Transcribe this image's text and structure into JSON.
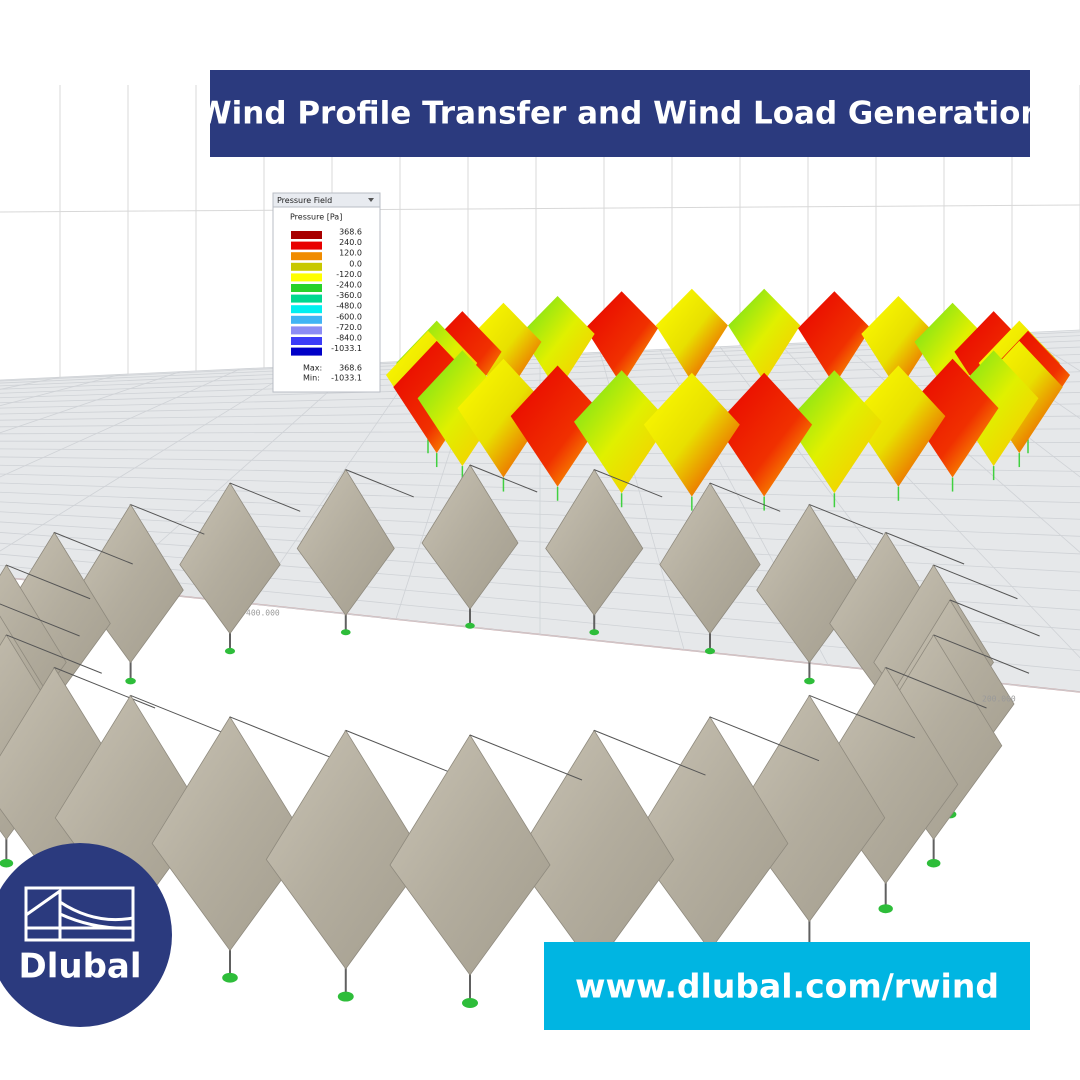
{
  "header": {
    "title": "Wind Profile Transfer and Wind Load Generation"
  },
  "legend": {
    "title": "Pressure Field",
    "quantity": "Pressure [Pa]",
    "entries": [
      {
        "label": "368.6",
        "color": "#a80000"
      },
      {
        "label": "240.0",
        "color": "#e80000"
      },
      {
        "label": "120.0",
        "color": "#f08c00"
      },
      {
        "label": "0.0",
        "color": "#c8c800"
      },
      {
        "label": "-120.0",
        "color": "#ffff00"
      },
      {
        "label": "-240.0",
        "color": "#28d22a"
      },
      {
        "label": "-360.0",
        "color": "#00d890"
      },
      {
        "label": "-480.0",
        "color": "#00f0f0"
      },
      {
        "label": "-600.0",
        "color": "#40b4f4"
      },
      {
        "label": "-720.0",
        "color": "#8c8cf4"
      },
      {
        "label": "-840.0",
        "color": "#3c3cf8"
      },
      {
        "label": "-1033.1",
        "color": "#0000c8"
      }
    ],
    "max_label": "Max:",
    "max_value": "368.6",
    "min_label": "Min:",
    "min_value": "-1033.1"
  },
  "scene": {
    "axis_labels": [
      "400.000",
      "200.000"
    ]
  },
  "logo": {
    "text": "Dlubal"
  },
  "footer": {
    "url": "www.dlubal.com/rwind"
  }
}
